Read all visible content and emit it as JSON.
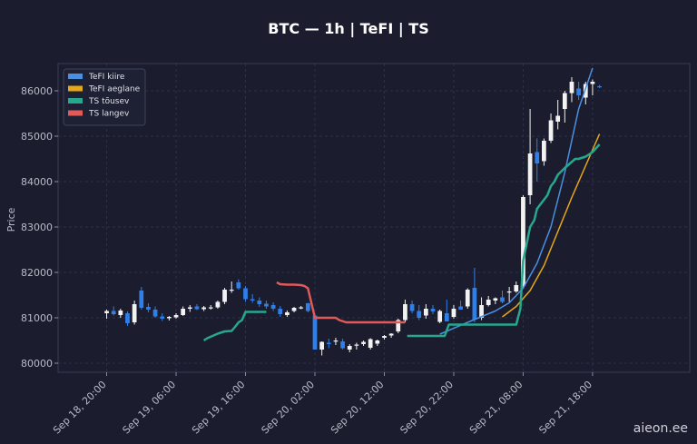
{
  "title": "BTC — 1h  |  TeFI  |  TS",
  "watermark": "aieon.ee",
  "colors": {
    "background": "#1b1d2e",
    "up_candle": "#f2f2f2",
    "down_candle": "#2f7fe8",
    "tefi_fast": "#4a90e2",
    "tefi_slow": "#e6a817",
    "ts_rising": "#26a88f",
    "ts_falling": "#e05a5a",
    "grid": "#2e3146"
  },
  "chart_data": {
    "type": "line",
    "title": "BTC — 1h  |  TeFI  |  TS",
    "ylabel": "Price",
    "xlabel": "",
    "ylim": [
      79800,
      86600
    ],
    "xlim": [
      -7,
      84
    ],
    "yticks": [
      80000,
      81000,
      82000,
      83000,
      84000,
      85000,
      86000
    ],
    "xticks": [
      {
        "label": "Sep 18, 20:00",
        "x": 0
      },
      {
        "label": "Sep 19, 06:00",
        "x": 10
      },
      {
        "label": "Sep 19, 16:00",
        "x": 20
      },
      {
        "label": "Sep 20, 02:00",
        "x": 30
      },
      {
        "label": "Sep 20, 12:00",
        "x": 40
      },
      {
        "label": "Sep 20, 22:00",
        "x": 50
      },
      {
        "label": "Sep 21, 08:00",
        "x": 60
      },
      {
        "label": "Sep 21, 18:00",
        "x": 70
      }
    ],
    "grid": true,
    "legend_position": "top-left",
    "legend": [
      "TeFI kiire",
      "TeFI aeglane",
      "TS tõusev",
      "TS langev"
    ],
    "candles": [
      [
        81100,
        81180,
        80980,
        81150
      ],
      [
        81150,
        81250,
        81050,
        81080
      ],
      [
        81060,
        81200,
        81000,
        81160
      ],
      [
        81100,
        81140,
        80820,
        80880
      ],
      [
        80900,
        81380,
        80850,
        81300
      ],
      [
        81600,
        81680,
        81180,
        81220
      ],
      [
        81240,
        81320,
        81120,
        81180
      ],
      [
        81180,
        81250,
        81000,
        81030
      ],
      [
        81030,
        81100,
        80930,
        80980
      ],
      [
        80990,
        81040,
        80940,
        81020
      ],
      [
        81010,
        81100,
        80980,
        81060
      ],
      [
        81060,
        81250,
        81040,
        81200
      ],
      [
        81200,
        81280,
        81130,
        81230
      ],
      [
        81250,
        81300,
        81170,
        81190
      ],
      [
        81190,
        81260,
        81150,
        81230
      ],
      [
        81210,
        81280,
        81180,
        81230
      ],
      [
        81230,
        81380,
        81200,
        81350
      ],
      [
        81350,
        81660,
        81300,
        81620
      ],
      [
        81620,
        81800,
        81550,
        81620
      ],
      [
        81780,
        81850,
        81620,
        81650
      ],
      [
        81650,
        81700,
        81350,
        81410
      ],
      [
        81410,
        81520,
        81330,
        81380
      ],
      [
        81380,
        81450,
        81240,
        81300
      ],
      [
        81310,
        81380,
        81200,
        81250
      ],
      [
        81280,
        81340,
        81150,
        81200
      ],
      [
        81200,
        81260,
        81020,
        81080
      ],
      [
        81060,
        81160,
        81020,
        81120
      ],
      [
        81150,
        81240,
        81120,
        81220
      ],
      [
        81220,
        81260,
        81190,
        81230
      ],
      [
        81320,
        81330,
        81120,
        81150
      ],
      [
        81050,
        81100,
        80300,
        80300
      ],
      [
        80300,
        80480,
        80170,
        80470
      ],
      [
        80450,
        80540,
        80330,
        80420
      ],
      [
        80480,
        80560,
        80400,
        80500
      ],
      [
        80480,
        80540,
        80300,
        80330
      ],
      [
        80300,
        80420,
        80240,
        80380
      ],
      [
        80390,
        80450,
        80300,
        80410
      ],
      [
        80420,
        80500,
        80380,
        80470
      ],
      [
        80340,
        80550,
        80300,
        80530
      ],
      [
        80430,
        80520,
        80380,
        80500
      ],
      [
        80560,
        80620,
        80520,
        80600
      ],
      [
        80610,
        80660,
        80560,
        80650
      ],
      [
        80700,
        80980,
        80660,
        80950
      ],
      [
        80950,
        81400,
        80900,
        81300
      ],
      [
        81300,
        81380,
        81100,
        81150
      ],
      [
        81150,
        81280,
        80950,
        81000
      ],
      [
        81050,
        81300,
        80980,
        81200
      ],
      [
        81200,
        81280,
        81080,
        81140
      ],
      [
        80910,
        81180,
        80880,
        81150
      ],
      [
        81100,
        81400,
        80950,
        80920
      ],
      [
        81020,
        81280,
        80980,
        81200
      ],
      [
        81250,
        81380,
        81180,
        81180
      ],
      [
        81250,
        81650,
        81200,
        81620
      ],
      [
        81660,
        82100,
        80900,
        80960
      ],
      [
        81000,
        81450,
        80950,
        81280
      ],
      [
        81280,
        81480,
        81250,
        81400
      ],
      [
        81380,
        81450,
        81300,
        81430
      ],
      [
        81450,
        81600,
        81320,
        81350
      ],
      [
        81560,
        81680,
        81350,
        81580
      ],
      [
        81580,
        81800,
        81550,
        81720
      ],
      [
        81700,
        83700,
        81650,
        83660
      ],
      [
        83700,
        85600,
        83500,
        84620
      ],
      [
        84650,
        84950,
        84000,
        84400
      ],
      [
        84450,
        84950,
        84350,
        84900
      ],
      [
        84900,
        85500,
        84850,
        85350
      ],
      [
        85320,
        85800,
        85150,
        85450
      ],
      [
        85600,
        86000,
        85300,
        85950
      ],
      [
        85950,
        86300,
        85750,
        86200
      ],
      [
        86050,
        86200,
        85800,
        85900
      ],
      [
        85850,
        86200,
        85700,
        86150
      ],
      [
        86150,
        86250,
        85900,
        86200
      ],
      [
        86100,
        86130,
        86060,
        86080
      ]
    ],
    "series": [
      {
        "name": "TeFI kiire",
        "x": [
          48,
          52,
          56,
          58,
          60,
          62,
          64,
          66,
          68,
          70
        ],
        "values": [
          80640,
          80900,
          81150,
          81330,
          81650,
          82200,
          83000,
          84200,
          85600,
          86500
        ]
      },
      {
        "name": "TeFI aeglane",
        "x": [
          57,
          59,
          61,
          63,
          65,
          67,
          69,
          71
        ],
        "values": [
          81020,
          81250,
          81600,
          82150,
          82900,
          83650,
          84350,
          85050
        ]
      },
      {
        "name": "TS tõusev",
        "x": [
          14,
          14.5,
          16,
          17,
          18,
          18.5,
          19,
          19.5,
          20,
          23,
          24.5,
          37,
          43.3,
          43.3,
          46,
          47,
          48,
          48.7,
          49.3,
          53,
          59,
          59.6,
          60,
          60.6,
          61,
          61.6,
          62,
          63.5,
          64,
          64.5,
          65,
          66,
          67.5,
          68,
          69,
          70,
          71
        ],
        "values": [
          80500,
          80550,
          80650,
          80700,
          80710,
          80800,
          80900,
          80950,
          81130,
          81130,
          null,
          null,
          80600,
          80600,
          80600,
          80600,
          80600,
          80600,
          80850,
          80850,
          80850,
          81200,
          82250,
          82700,
          83000,
          83150,
          83400,
          83700,
          83900,
          84000,
          84150,
          84300,
          84500,
          84500,
          84550,
          84650,
          84820
        ]
      },
      {
        "name": "TS langev",
        "x": [
          24.5,
          25,
          26,
          27,
          28,
          28.5,
          29,
          30,
          31,
          33,
          33.5,
          34.5,
          35,
          43
        ],
        "values": [
          81780,
          81740,
          81730,
          81730,
          81720,
          81700,
          81650,
          81000,
          81000,
          81000,
          80950,
          80900,
          80900,
          80900
        ]
      }
    ]
  }
}
